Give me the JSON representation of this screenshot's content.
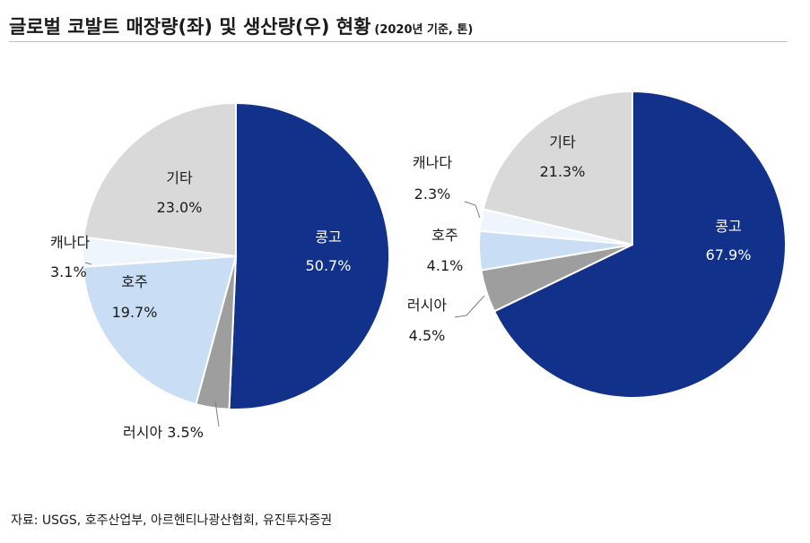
{
  "title": "글로벌 코발트 매장량(좌) 및 생산량(우) 현황",
  "subtitle": "(2020년 기준, 톤)",
  "source": "자료: USGS, 호주산업부, 아르헨티나광산협회, 유진투자증권",
  "colors": {
    "콩고": "#12318a",
    "러시아": "#9e9e9e",
    "호주": "#c9def5",
    "캐나다": "#eef5fc",
    "기타": "#d9d9d9"
  },
  "chart_data": [
    {
      "type": "pie",
      "title": "매장량",
      "start": "12 o'clock, clockwise",
      "slices": [
        {
          "label": "콩고",
          "value": 50.7,
          "value_text": "50.7%"
        },
        {
          "label": "러시아",
          "value": 3.5,
          "value_text": "3.5%"
        },
        {
          "label": "호주",
          "value": 19.7,
          "value_text": "19.7%"
        },
        {
          "label": "캐나다",
          "value": 3.1,
          "value_text": "3.1%"
        },
        {
          "label": "기타",
          "value": 23.0,
          "value_text": "23.0%"
        }
      ]
    },
    {
      "type": "pie",
      "title": "생산량",
      "start": "12 o'clock, clockwise",
      "slices": [
        {
          "label": "콩고",
          "value": 67.9,
          "value_text": "67.9%"
        },
        {
          "label": "러시아",
          "value": 4.5,
          "value_text": "4.5%"
        },
        {
          "label": "호주",
          "value": 4.1,
          "value_text": "4.1%"
        },
        {
          "label": "캐나다",
          "value": 2.3,
          "value_text": "2.3%"
        },
        {
          "label": "기타",
          "value": 21.3,
          "value_text": "21.3%"
        }
      ]
    }
  ]
}
